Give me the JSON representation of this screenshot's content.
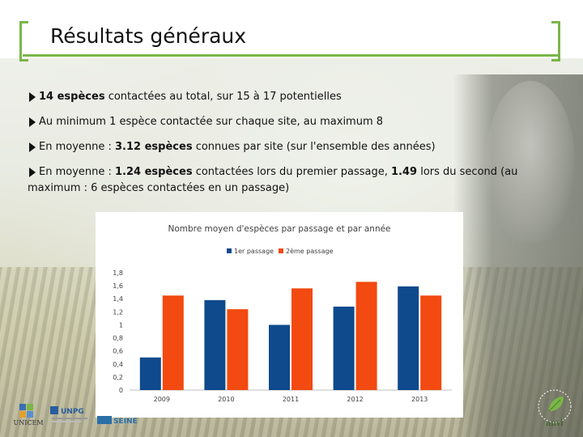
{
  "title": "Résultats généraux",
  "bullets": [
    {
      "bold1": "14 espèces",
      "text1": " contactées au total, sur 15 à 17 potentielles"
    },
    {
      "text1": "Au minimum 1 espèce contactée sur chaque site, au maximum 8"
    },
    {
      "text1": "En moyenne : ",
      "bold1": "3.12 espèces",
      "text2": " connues par site (sur l'ensemble des années)"
    },
    {
      "text1": "En moyenne : ",
      "bold1": "1.24 espèces",
      "text2": " contactées lors du premier passage, ",
      "bold2": "1.49",
      "text3": " lors du second (au",
      "line2": "maximum : 6 espèces contactées en un passage)"
    }
  ],
  "chart_data": {
    "type": "bar",
    "title": "Nombre moyen d'espèces par passage et par année",
    "categories": [
      "2009",
      "2010",
      "2011",
      "2012",
      "2013"
    ],
    "series": [
      {
        "name": "1er passage",
        "color": "#0e4a8c",
        "values": [
          0.5,
          1.38,
          1.0,
          1.28,
          1.59
        ]
      },
      {
        "name": "2ème passage",
        "color": "#f24a10",
        "values": [
          1.45,
          1.24,
          1.56,
          1.66,
          1.45
        ]
      }
    ],
    "ylim": [
      0,
      1.8
    ],
    "yticks": [
      "0",
      "0,2",
      "0,4",
      "0,6",
      "0,8",
      "1",
      "1,2",
      "1,4",
      "1,6",
      "1,8"
    ],
    "legend_position": "top",
    "grid": false
  },
  "logos": {
    "unicem": "UNICEM",
    "unpg": "UNPG",
    "seine": "SEINE",
    "anvl": "anvl"
  },
  "colors": {
    "accent": "#7ab648"
  }
}
